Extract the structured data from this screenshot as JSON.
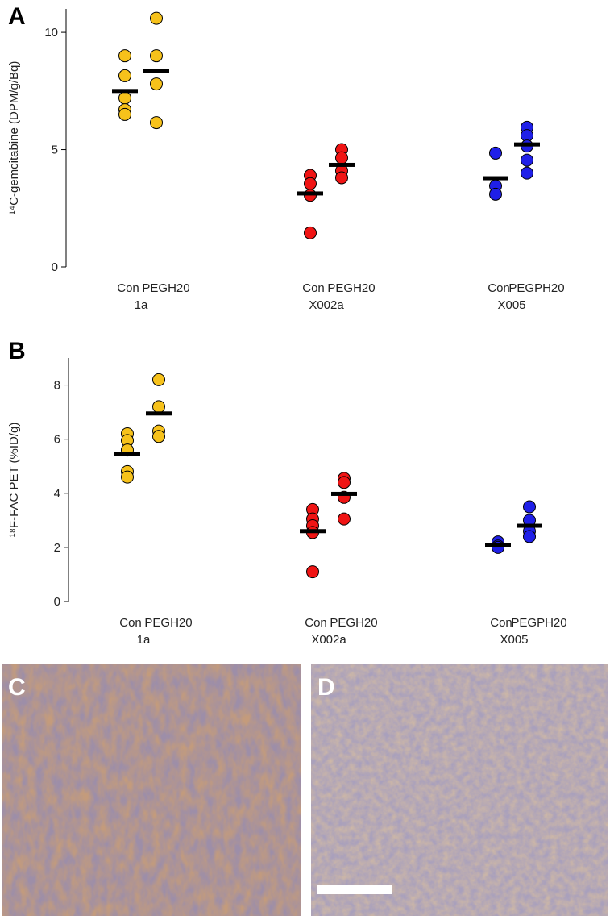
{
  "chart_data": [
    {
      "type": "strip",
      "panel": "A",
      "y_label": "¹⁴C-gemcitabine (DPM/g/Bq)",
      "ylim": [
        0,
        11
      ],
      "yticks": [
        0,
        5,
        10
      ],
      "groups": [
        {
          "label": "1a",
          "color": "#f7c21b",
          "columns": [
            {
              "label": "Con",
              "values": [
                9.0,
                8.15,
                7.2,
                6.7,
                6.5
              ],
              "mean": 7.5
            },
            {
              "label": "PEGH20",
              "values": [
                10.6,
                9.0,
                7.8,
                6.15
              ],
              "mean": 8.35
            }
          ]
        },
        {
          "label": "X002a",
          "color": "#f01414",
          "columns": [
            {
              "label": "Con",
              "values": [
                3.9,
                3.55,
                3.05,
                1.45
              ],
              "mean": 3.13
            },
            {
              "label": "PEGH20",
              "values": [
                5.0,
                4.65,
                4.1,
                3.8
              ],
              "mean": 4.35
            }
          ]
        },
        {
          "label": "X005",
          "color": "#1f1fe8",
          "columns": [
            {
              "label": "Con",
              "values": [
                4.85,
                3.45,
                3.1
              ],
              "mean": 3.78
            },
            {
              "label": "PEGPH20",
              "values": [
                5.95,
                5.6,
                5.15,
                4.55,
                4.0
              ],
              "mean": 5.22
            }
          ]
        }
      ]
    },
    {
      "type": "strip",
      "panel": "B",
      "y_label": "¹⁸F-FAC PET (%ID/g)",
      "ylim": [
        0,
        9
      ],
      "yticks": [
        0,
        2,
        4,
        6,
        8
      ],
      "groups": [
        {
          "label": "1a",
          "color": "#f7c21b",
          "columns": [
            {
              "label": "Con",
              "values": [
                6.2,
                5.95,
                5.6,
                4.8,
                4.6
              ],
              "mean": 5.45
            },
            {
              "label": "PEGH20",
              "values": [
                8.2,
                7.2,
                6.3,
                6.1
              ],
              "mean": 6.95
            }
          ]
        },
        {
          "label": "X002a",
          "color": "#f01414",
          "columns": [
            {
              "label": "Con",
              "values": [
                3.4,
                3.05,
                2.8,
                2.55,
                1.1
              ],
              "mean": 2.6
            },
            {
              "label": "PEGH20",
              "values": [
                4.55,
                4.4,
                3.85,
                3.05
              ],
              "mean": 3.98
            }
          ]
        },
        {
          "label": "X005",
          "color": "#1f1fe8",
          "columns": [
            {
              "label": "Con",
              "values": [
                2.2,
                2.05,
                2.0
              ],
              "mean": 2.1
            },
            {
              "label": "PEGPH20",
              "values": [
                3.5,
                3.0,
                2.6,
                2.4
              ],
              "mean": 2.8
            }
          ]
        }
      ]
    }
  ],
  "images": [
    {
      "label": "C"
    },
    {
      "label": "D"
    }
  ]
}
